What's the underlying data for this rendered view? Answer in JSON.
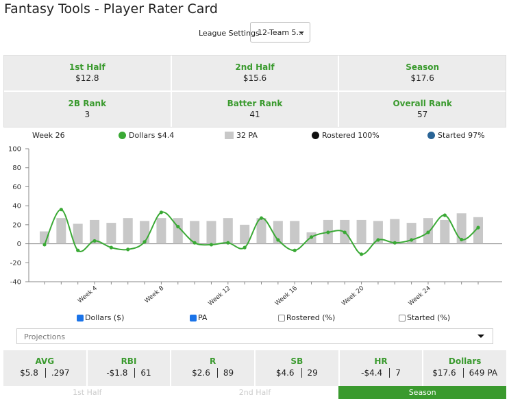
{
  "header": {
    "title": "Fantasy Tools - Player Rater Card",
    "league_label": "League Settings",
    "league_value": "12-Team 5..."
  },
  "summary": [
    {
      "label": "1st Half",
      "value": "$12.8"
    },
    {
      "label": "2nd Half",
      "value": "$15.6"
    },
    {
      "label": "Season",
      "value": "$17.6"
    },
    {
      "label": "2B Rank",
      "value": "3"
    },
    {
      "label": "Batter Rank",
      "value": "41"
    },
    {
      "label": "Overall Rank",
      "value": "57"
    }
  ],
  "legend": {
    "week": "Week 26",
    "dollars": "Dollars $4.4",
    "pa": "32 PA",
    "rostered": "Rostered 100%",
    "started": "Started 97%"
  },
  "chart_data": {
    "type": "combo",
    "categories": [
      null,
      null,
      null,
      "Week 4",
      null,
      null,
      null,
      "Week 8",
      null,
      null,
      null,
      "Week 12",
      null,
      null,
      null,
      "Week 16",
      null,
      null,
      null,
      "Week 20",
      null,
      null,
      null,
      "Week 24",
      null,
      null,
      null
    ],
    "series": [
      {
        "name": "PA",
        "type": "bar",
        "color": "#c8c8c8",
        "values": [
          13,
          27,
          21,
          25,
          22,
          27,
          24,
          27,
          27,
          24,
          24,
          27,
          20,
          27,
          24,
          24,
          12,
          25,
          25,
          25,
          24,
          26,
          22,
          27,
          25,
          32,
          28
        ]
      },
      {
        "name": "Dollars",
        "type": "line",
        "color": "#3aa935",
        "values": [
          -1,
          36,
          -7,
          3,
          -4,
          -6,
          2,
          33,
          18,
          1,
          -1,
          1,
          -4,
          27,
          4,
          -7,
          7,
          12,
          12,
          -11,
          4,
          1,
          4,
          12,
          30,
          4.4,
          17
        ]
      }
    ],
    "ylim": [
      -40,
      100
    ],
    "yticks": [
      -40,
      -20,
      0,
      20,
      40,
      60,
      80,
      100
    ]
  },
  "toggles": [
    {
      "label": "Dollars ($)",
      "checked": true
    },
    {
      "label": "PA",
      "checked": true
    },
    {
      "label": "Rostered (%)",
      "checked": false
    },
    {
      "label": "Started (%)",
      "checked": false
    }
  ],
  "projections": "Projections",
  "stats": [
    {
      "label": "AVG",
      "dollars": "$5.8",
      "value": ".297"
    },
    {
      "label": "RBI",
      "dollars": "-$1.8",
      "value": "61"
    },
    {
      "label": "R",
      "dollars": "$2.6",
      "value": "89"
    },
    {
      "label": "SB",
      "dollars": "$4.6",
      "value": "29"
    },
    {
      "label": "HR",
      "dollars": "-$4.4",
      "value": "7"
    },
    {
      "label": "Dollars",
      "dollars": "$17.6",
      "value": "649 PA"
    }
  ],
  "tabs": [
    "1st Half",
    "2nd Half",
    "Season"
  ]
}
